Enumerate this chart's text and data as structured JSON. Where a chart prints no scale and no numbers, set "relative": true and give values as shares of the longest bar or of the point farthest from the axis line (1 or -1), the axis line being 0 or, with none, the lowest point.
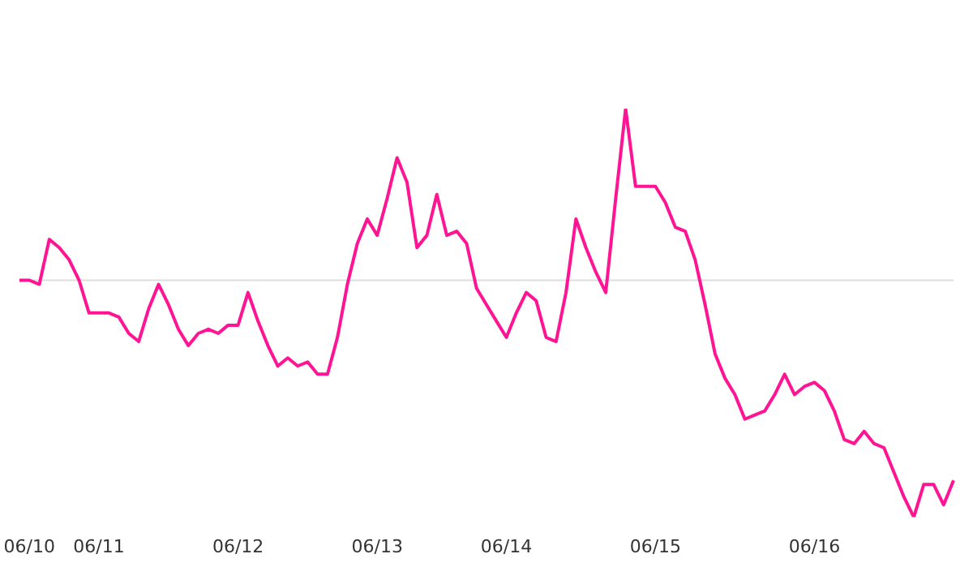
{
  "chart_data": {
    "type": "line",
    "relative": true,
    "categories": [
      null,
      "06/10",
      null,
      null,
      null,
      null,
      null,
      null,
      "06/11",
      null,
      null,
      null,
      null,
      null,
      null,
      null,
      null,
      null,
      null,
      null,
      null,
      null,
      "06/12",
      null,
      null,
      null,
      null,
      null,
      null,
      null,
      null,
      null,
      null,
      null,
      null,
      null,
      "06/13",
      null,
      null,
      null,
      null,
      null,
      null,
      null,
      null,
      null,
      null,
      null,
      null,
      "06/14",
      null,
      null,
      null,
      null,
      null,
      null,
      null,
      null,
      null,
      null,
      null,
      null,
      null,
      null,
      "06/15",
      null,
      null,
      null,
      null,
      null,
      null,
      null,
      null,
      null,
      null,
      null,
      null,
      null,
      null,
      null,
      "06/16",
      null,
      null,
      null,
      null,
      null,
      null,
      null,
      null,
      null,
      null,
      null,
      null,
      null,
      null
    ],
    "series": [
      {
        "color": "#ff1493",
        "values": [
          0.58,
          0.58,
          0.57,
          0.68,
          0.66,
          0.63,
          0.58,
          0.5,
          0.5,
          0.5,
          0.49,
          0.45,
          0.43,
          0.51,
          0.57,
          0.52,
          0.46,
          0.42,
          0.45,
          0.46,
          0.45,
          0.47,
          0.47,
          0.55,
          0.48,
          0.42,
          0.37,
          0.39,
          0.37,
          0.38,
          0.35,
          0.35,
          0.44,
          0.57,
          0.67,
          0.73,
          0.69,
          0.78,
          0.88,
          0.82,
          0.66,
          0.69,
          0.79,
          0.69,
          0.7,
          0.67,
          0.56,
          0.52,
          0.48,
          0.44,
          0.5,
          0.55,
          0.53,
          0.44,
          0.43,
          0.55,
          0.73,
          0.66,
          0.6,
          0.55,
          0.78,
          1,
          0.81,
          0.81,
          0.81,
          0.77,
          0.71,
          0.7,
          0.63,
          0.52,
          0.4,
          0.34,
          0.3,
          0.24,
          0.25,
          0.26,
          0.3,
          0.35,
          0.3,
          0.32,
          0.33,
          0.31,
          0.26,
          0.19,
          0.18,
          0.21,
          0.18,
          0.17,
          0.11,
          0.05,
          0,
          0.08,
          0.08,
          0.03,
          0.09
        ]
      }
    ],
    "ref_lines": [
      {
        "axis": "y",
        "value": 0.58,
        "color": "#dddddd"
      }
    ],
    "grid": false,
    "legend": false,
    "marker": "none",
    "line_style": "solid"
  }
}
